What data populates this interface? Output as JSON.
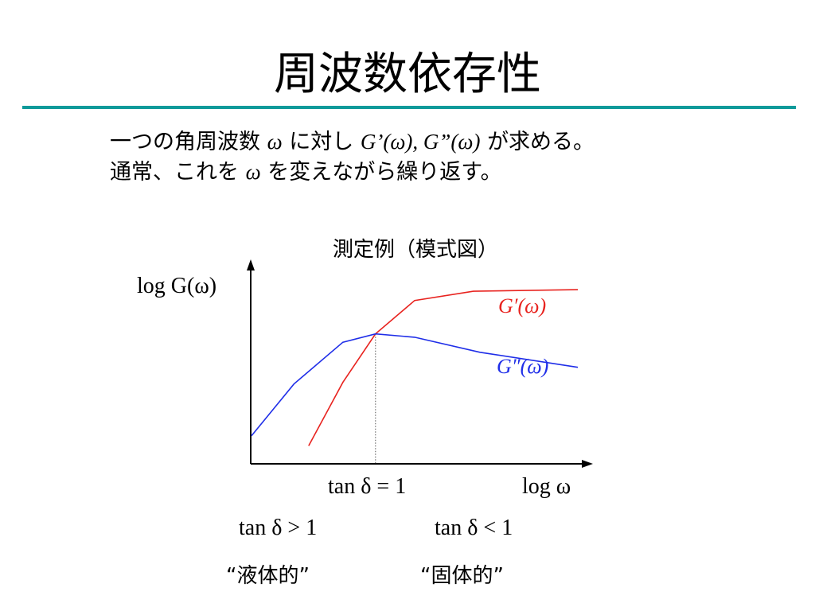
{
  "slide": {
    "title": "周波数依存性",
    "line1": {
      "before": "一つの角周波数",
      "omega": "ω",
      "middle": "に対し",
      "gprime": "G’(ω), G”(ω)",
      "after": "が求める。"
    },
    "line2": {
      "before": "通常、これを",
      "omega": "ω",
      "after": "を変えながら繰り返す。"
    },
    "diagram_title": "測定例（模式図）",
    "liquid_condition": "tan δ > 1",
    "solid_condition": "tan δ < 1",
    "liquid_label": "“液体的”",
    "solid_label": "“固体的”"
  },
  "chart_data": {
    "type": "line",
    "ylabel": "log G(ω)",
    "xlabel": "log ω",
    "crossover_label": "tan δ = 1",
    "series": [
      {
        "name": "G′(ω)",
        "color": "#e8231f",
        "points": [
          [
            0.175,
            0.06
          ],
          [
            0.28,
            0.44
          ],
          [
            0.38,
            0.73
          ],
          [
            0.5,
            0.93
          ],
          [
            0.68,
            0.985
          ],
          [
            1.0,
            0.995
          ]
        ]
      },
      {
        "name": "G″(ω)",
        "color": "#1f2ee8",
        "points": [
          [
            0.0,
            0.12
          ],
          [
            0.13,
            0.43
          ],
          [
            0.28,
            0.68
          ],
          [
            0.38,
            0.73
          ],
          [
            0.5,
            0.71
          ],
          [
            0.7,
            0.62
          ],
          [
            1.0,
            0.53
          ]
        ]
      }
    ],
    "crossover_x": 0.38,
    "colors": {
      "axis": "#000000",
      "guide": "#555555"
    }
  }
}
